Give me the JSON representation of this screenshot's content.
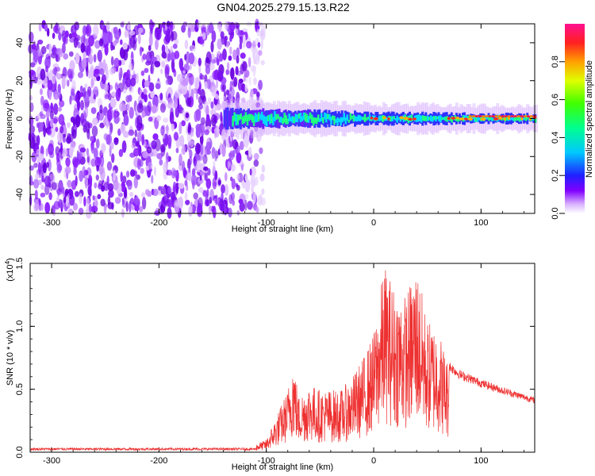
{
  "title": "GN04.2025.279.15.13.R22",
  "chart_data": [
    {
      "type": "heatmap",
      "title": "GN04.2025.279.15.13.R22",
      "xlabel": "Height of straight line (km)",
      "ylabel": "Frequency (Hz)",
      "xlim": [
        -320,
        150
      ],
      "ylim": [
        -50,
        50
      ],
      "x_ticks": [
        -300,
        -200,
        -100,
        0,
        100
      ],
      "y_ticks": [
        -40,
        -20,
        0,
        20,
        40
      ],
      "noise_region_x": [
        -320,
        -110
      ],
      "signal_band": {
        "x_start": -140,
        "x_end": 150,
        "center_freq": 0,
        "half_width_hz": [
          [
            -140,
            5
          ],
          [
            -60,
            4
          ],
          [
            0,
            3
          ],
          [
            150,
            2
          ]
        ]
      },
      "colorbar": {
        "label": "Normalized spectral amplitude",
        "range": [
          0.0,
          1.0
        ],
        "ticks": [
          0.0,
          0.2,
          0.4,
          0.6,
          0.8
        ]
      }
    },
    {
      "type": "line",
      "xlabel": "Height of straight line (km)",
      "ylabel": "SNR (10 * v/v)",
      "scale_note_base": "(x10",
      "scale_note_exp": "4",
      "scale_note_end": ")",
      "xlim": [
        -320,
        150
      ],
      "ylim": [
        0,
        1.5
      ],
      "x_ticks": [
        -300,
        -200,
        -100,
        0,
        100
      ],
      "y_ticks": [
        0.0,
        0.5,
        1.0,
        1.5
      ],
      "series": [
        {
          "name": "SNR",
          "color": "#ee3030",
          "envelope_x": [
            -320,
            -120,
            -100,
            -80,
            -75,
            -70,
            -60,
            -50,
            -40,
            -30,
            -20,
            -10,
            0,
            10,
            20,
            30,
            40,
            50,
            60,
            70,
            80,
            100,
            120,
            150
          ],
          "envelope_y": [
            0.02,
            0.03,
            0.1,
            0.5,
            0.78,
            0.45,
            0.55,
            0.5,
            0.5,
            0.5,
            0.6,
            0.75,
            0.95,
            1.5,
            1.3,
            1.25,
            1.5,
            1.05,
            1.0,
            0.7,
            0.63,
            0.56,
            0.5,
            0.42
          ]
        }
      ]
    }
  ]
}
